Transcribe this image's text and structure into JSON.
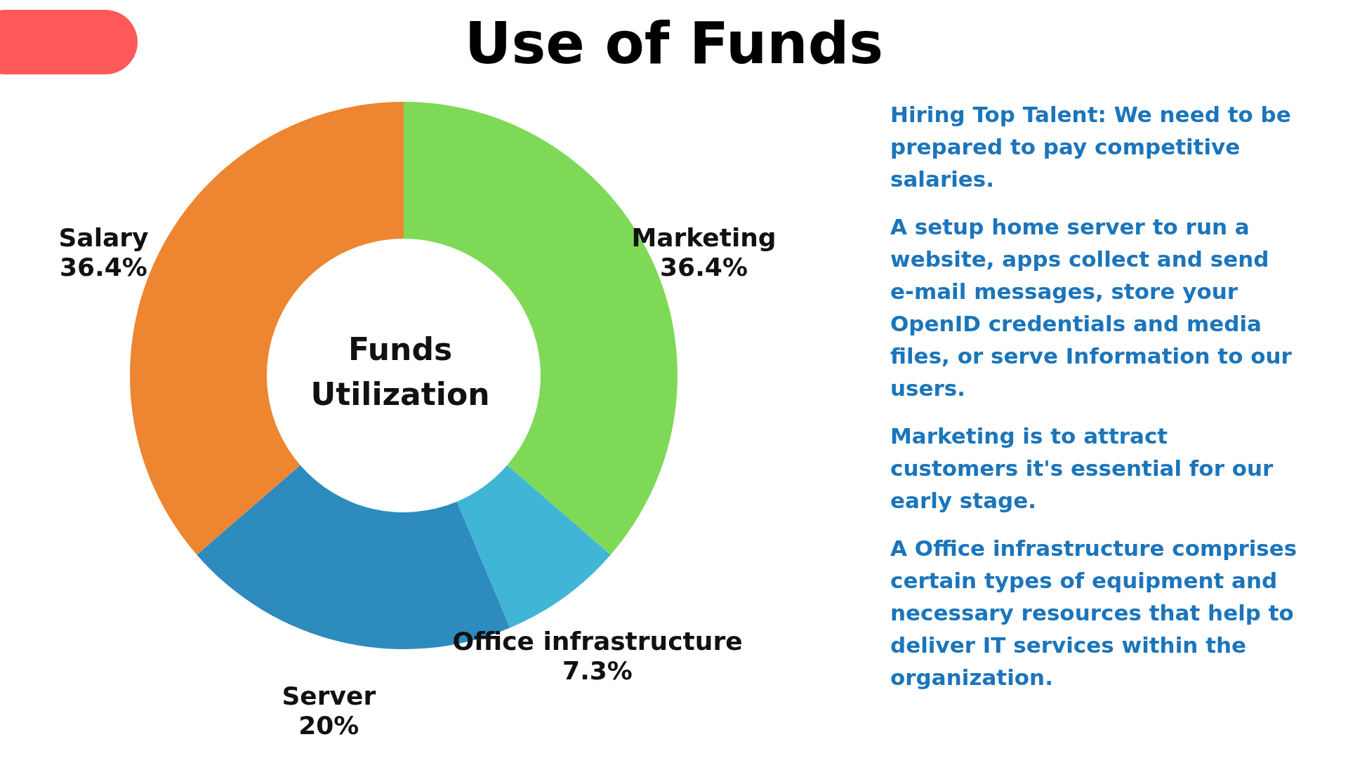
{
  "chart_data": {
    "type": "donut",
    "title": "Use of Funds",
    "categories": [
      "Marketing",
      "Office infrastructure",
      "Server",
      "Salary"
    ],
    "values": [
      36.4,
      7.3,
      20,
      36.4
    ],
    "value_labels": [
      "36.4%",
      "7.3%",
      "20%",
      "36.4%"
    ],
    "colors": [
      "#7ed957",
      "#40b5d6",
      "#2e8bbd",
      "#ed8531"
    ],
    "annotations": [
      "Funds Utilization",
      "Hiring Top Talent: We need to be prepared to pay competitive salaries.",
      "A setup home server to run a website, apps collect and send e-mail messages, store your OpenID credentials and media files, or serve Information to our users.",
      "Marketing is to attract customers it's essential for our early stage.",
      "A Office infrastructure comprises certain types of equipment and necessary resources that help to deliver IT services within the organization."
    ]
  }
}
